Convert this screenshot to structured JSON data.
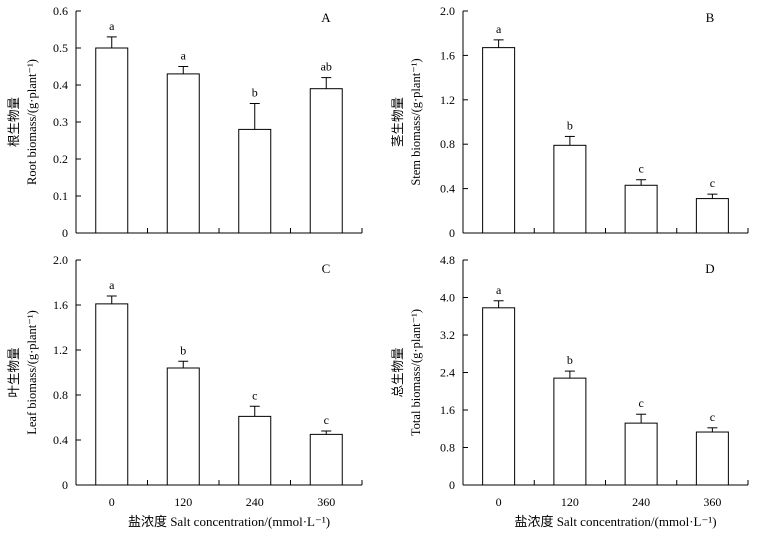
{
  "chart_data": [
    {
      "type": "bar",
      "panel": "A",
      "ylabel_zh": "根生物量",
      "ylabel": "Root biomass/(g·plant⁻¹)",
      "categories": [
        "0",
        "120",
        "240",
        "360"
      ],
      "values": [
        0.5,
        0.43,
        0.28,
        0.39
      ],
      "errors": [
        0.03,
        0.02,
        0.07,
        0.03
      ],
      "letters": [
        "a",
        "a",
        "b",
        "ab"
      ],
      "ylim": [
        0,
        0.6
      ],
      "yticks": [
        "0",
        "0.1",
        "0.2",
        "0.3",
        "0.4",
        "0.5",
        "0.6"
      ],
      "xlabel": ""
    },
    {
      "type": "bar",
      "panel": "B",
      "ylabel_zh": "茎生物量",
      "ylabel": "Stem biomass/(g·plant⁻¹)",
      "categories": [
        "0",
        "120",
        "240",
        "360"
      ],
      "values": [
        1.67,
        0.79,
        0.43,
        0.31
      ],
      "errors": [
        0.07,
        0.08,
        0.05,
        0.04
      ],
      "letters": [
        "a",
        "b",
        "c",
        "c"
      ],
      "ylim": [
        0,
        2.0
      ],
      "yticks": [
        "0",
        "0.4",
        "0.8",
        "1.2",
        "1.6",
        "2.0"
      ],
      "xlabel": ""
    },
    {
      "type": "bar",
      "panel": "C",
      "ylabel_zh": "叶生物量",
      "ylabel": "Leaf biomass/(g·plant⁻¹)",
      "categories": [
        "0",
        "120",
        "240",
        "360"
      ],
      "values": [
        1.61,
        1.04,
        0.61,
        0.45
      ],
      "errors": [
        0.07,
        0.06,
        0.09,
        0.03
      ],
      "letters": [
        "a",
        "b",
        "c",
        "c"
      ],
      "ylim": [
        0,
        2.0
      ],
      "yticks": [
        "0",
        "0.4",
        "0.8",
        "1.2",
        "1.6",
        "2.0"
      ],
      "xlabel_zh": "盐浓度",
      "xlabel": "Salt concentration/(mmol·L⁻¹)"
    },
    {
      "type": "bar",
      "panel": "D",
      "ylabel_zh": "总生物量",
      "ylabel": "Total biomass/(g·plant⁻¹)",
      "categories": [
        "0",
        "120",
        "240",
        "360"
      ],
      "values": [
        3.78,
        2.28,
        1.32,
        1.13
      ],
      "errors": [
        0.15,
        0.15,
        0.19,
        0.09
      ],
      "letters": [
        "a",
        "b",
        "c",
        "c"
      ],
      "ylim": [
        0,
        4.8
      ],
      "yticks": [
        "0",
        "0.8",
        "1.6",
        "2.4",
        "3.2",
        "4.0",
        "4.8"
      ],
      "xlabel_zh": "盐浓度",
      "xlabel": "Salt concentration/(mmol·L⁻¹)"
    }
  ]
}
